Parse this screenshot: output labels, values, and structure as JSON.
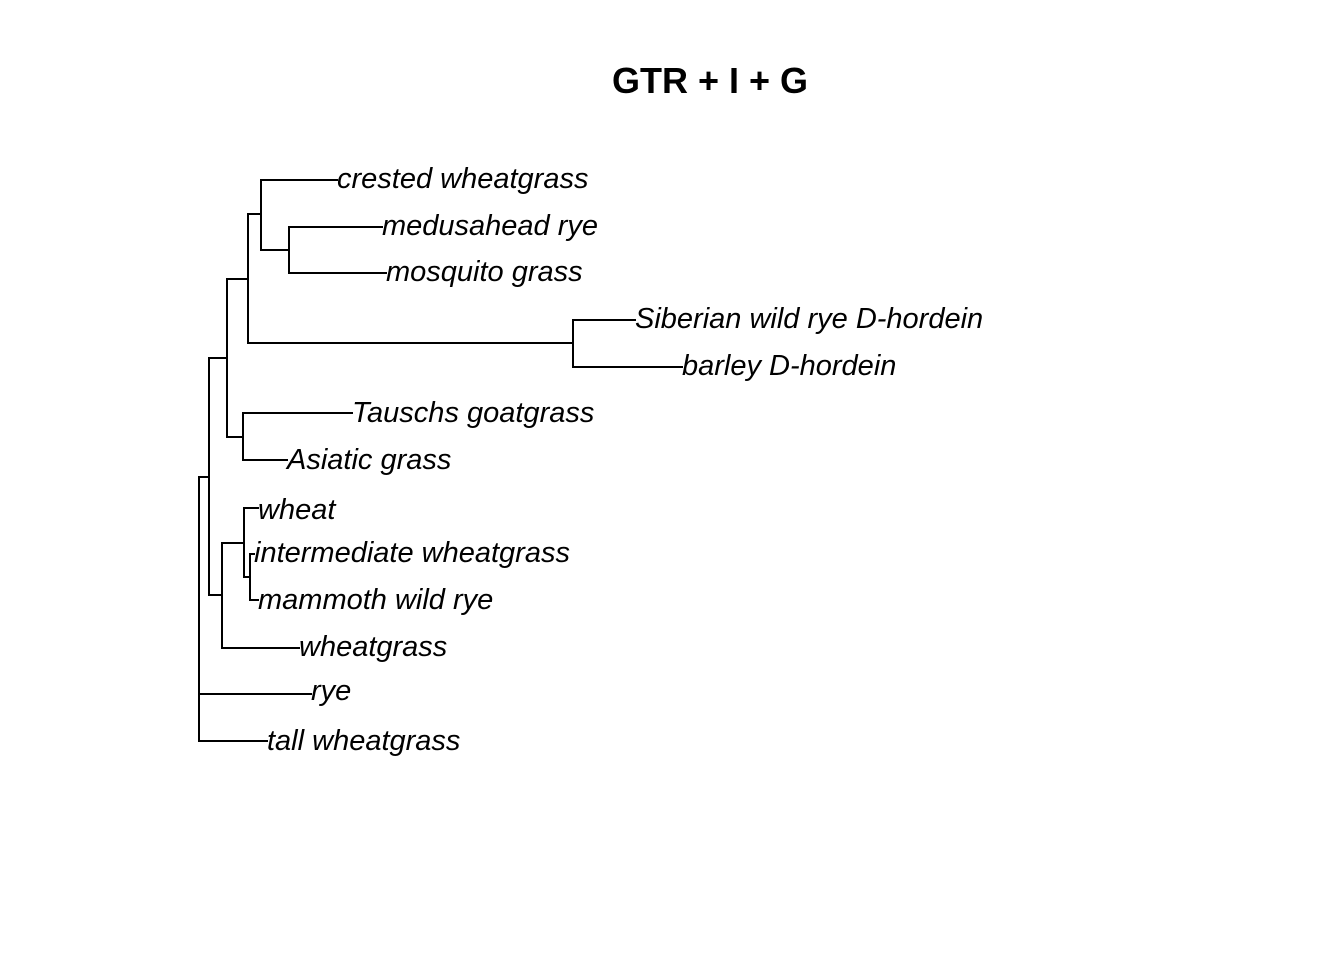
{
  "title": "GTR + I + G",
  "tips": {
    "crested": "crested wheatgrass",
    "medusahead": "medusahead rye",
    "mosquito": "mosquito grass",
    "siberian": "Siberian wild rye D-hordein",
    "barley": "barley D-hordein",
    "tauschs": "Tauschs goatgrass",
    "asiatic": "Asiatic grass",
    "wheat": "wheat",
    "intermediate": "intermediate wheatgrass",
    "mammoth": "mammoth wild rye",
    "wheatgrass": "wheatgrass",
    "rye": "rye",
    "tall": "tall wheatgrass"
  },
  "colors": {
    "line": "#000000",
    "background": "#ffffff"
  }
}
